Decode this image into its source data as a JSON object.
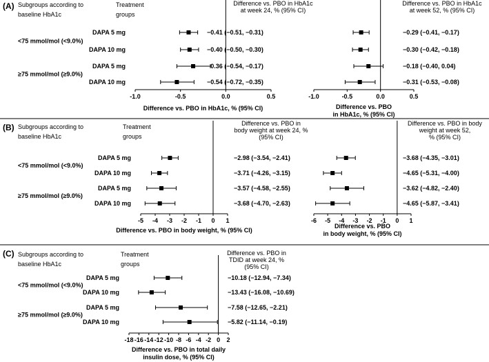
{
  "chart_data": [
    {
      "type": "forest",
      "panel_label": "(A)",
      "header": {
        "subgroup_line1": "Subgroups according to",
        "subgroup_line2": "baseline HbA1c",
        "treatment_line1": "Treatment",
        "treatment_line2": "groups"
      },
      "subgroups": [
        "<75 mmol/mol (<9.0%)",
        "≥75 mmol/mol (≥9.0%)"
      ],
      "rows": [
        {
          "subgroup": 0,
          "treatment": "DAPA 5 mg"
        },
        {
          "subgroup": 0,
          "treatment": "DAPA 10 mg"
        },
        {
          "subgroup": 1,
          "treatment": "DAPA 5 mg"
        },
        {
          "subgroup": 1,
          "treatment": "DAPA 10 mg"
        }
      ],
      "plots": [
        {
          "column_title": [
            "Difference vs. PBO in HbA1c",
            "at week 24, % (95% CI)"
          ],
          "xlabel": [
            "Difference vs. PBO in HbA1c, % (95% CI)"
          ],
          "xlim": [
            -1.0,
            0.5
          ],
          "ticks": [
            "-1.0",
            "-0.5",
            "0.0",
            "0.5"
          ],
          "tick_values": [
            -1.0,
            -0.5,
            0.0,
            0.5
          ],
          "estimates": [
            -0.41,
            -0.4,
            -0.36,
            -0.54
          ],
          "lower": [
            -0.51,
            -0.5,
            -0.54,
            -0.72
          ],
          "upper": [
            -0.31,
            -0.3,
            -0.17,
            -0.35
          ],
          "labels": [
            "−0.41 (−0.51, −0.31)",
            "−0.40 (−0.50, −0.30)",
            "−0.36 (−0.54, −0.17)",
            "−0.54 (−0.72, −0.35)"
          ]
        },
        {
          "column_title": [
            "Difference vs. PBO in HbA1c",
            "at week 52, % (95% CI)"
          ],
          "xlabel": [
            "Difference vs. PBO",
            "in HbA1c, % (95% CI)"
          ],
          "xlim": [
            -1.0,
            0.5
          ],
          "ticks": [
            "-1.0",
            "-0.5",
            "0.0",
            "0.5"
          ],
          "tick_values": [
            -1.0,
            -0.5,
            0.0,
            0.5
          ],
          "estimates": [
            -0.29,
            -0.3,
            -0.18,
            -0.31
          ],
          "lower": [
            -0.41,
            -0.42,
            -0.4,
            -0.53
          ],
          "upper": [
            -0.17,
            -0.18,
            0.04,
            -0.08
          ],
          "labels": [
            "−0.29 (−0.41, −0.17)",
            "−0.30 (−0.42, −0.18)",
            "−0.18 (−0.40, 0.04)",
            "−0.31 (−0.53, −0.08)"
          ]
        }
      ]
    },
    {
      "type": "forest",
      "panel_label": "(B)",
      "header": {
        "subgroup_line1": "Subgroups according to",
        "subgroup_line2": "baseline HbA1c",
        "treatment_line1": "Treatment",
        "treatment_line2": "groups"
      },
      "subgroups": [
        "<75 mmol/mol (<9.0%)",
        "≥75 mmol/mol (≥9.0%)"
      ],
      "rows": [
        {
          "subgroup": 0,
          "treatment": "DAPA 5 mg"
        },
        {
          "subgroup": 0,
          "treatment": "DAPA 10 mg"
        },
        {
          "subgroup": 1,
          "treatment": "DAPA 5 mg"
        },
        {
          "subgroup": 1,
          "treatment": "DAPA 10 mg"
        }
      ],
      "plots": [
        {
          "column_title": [
            "Difference vs. PBO in",
            "body weight  at week 24, %",
            "(95% CI)"
          ],
          "xlabel": [
            "Difference vs. PBO in body weight, % (95% CI)"
          ],
          "xlim": [
            -5,
            1
          ],
          "ticks": [
            "-5",
            "-4",
            "-3",
            "-2",
            "-1",
            "0",
            "1"
          ],
          "tick_values": [
            -5,
            -4,
            -3,
            -2,
            -1,
            0,
            1
          ],
          "estimates": [
            -2.98,
            -3.71,
            -3.57,
            -3.68
          ],
          "lower": [
            -3.54,
            -4.26,
            -4.58,
            -4.7
          ],
          "upper": [
            -2.41,
            -3.15,
            -2.55,
            -2.63
          ],
          "labels": [
            "−2.98 (−3.54, −2.41)",
            "−3.71 (−4.26, −3.15)",
            "−3.57 (−4.58, −2.55)",
            "−3.68 (−4.70, −2.63)"
          ]
        },
        {
          "column_title": [
            "Difference vs. PBO in body",
            "weight  at week 52,",
            "% (95% CI)"
          ],
          "xlabel": [
            "Difference vs. PBO",
            "in body weight, % (95% CI)"
          ],
          "xlim": [
            -6,
            1
          ],
          "ticks": [
            "-6",
            "-5",
            "-4",
            "-3",
            "-2",
            "-1",
            "0",
            "1"
          ],
          "tick_values": [
            -6,
            -5,
            -4,
            -3,
            -2,
            -1,
            0,
            1
          ],
          "estimates": [
            -3.68,
            -4.65,
            -3.62,
            -4.65
          ],
          "lower": [
            -4.35,
            -5.31,
            -4.82,
            -5.87
          ],
          "upper": [
            -3.01,
            -4.0,
            -2.4,
            -3.41
          ],
          "labels": [
            "−3.68 (−4.35, −3.01)",
            "−4.65 (−5.31, −4.00)",
            "−3.62 (−4.82, −2.40)",
            "−4.65 (−5.87, −3.41)"
          ]
        }
      ]
    },
    {
      "type": "forest",
      "panel_label": "(C)",
      "header": {
        "subgroup_line1": "Subgroups according to",
        "subgroup_line2": "baseline HbA1c",
        "treatment_line1": "Treatment",
        "treatment_line2": "groups"
      },
      "subgroups": [
        "<75 mmol/mol (<9.0%)",
        "≥75 mmol/mol (≥9.0%)"
      ],
      "rows": [
        {
          "subgroup": 0,
          "treatment": "DAPA 5 mg"
        },
        {
          "subgroup": 0,
          "treatment": "DAPA 10 mg"
        },
        {
          "subgroup": 1,
          "treatment": "DAPA 5 mg"
        },
        {
          "subgroup": 1,
          "treatment": "DAPA 10 mg"
        }
      ],
      "plots": [
        {
          "column_title": [
            "Difference vs. PBO in",
            "TDID  at week 24, %",
            "(95% CI)"
          ],
          "xlabel": [
            "Difference vs. PBO in total daily",
            "insulin dose, % (95% CI)"
          ],
          "xlim": [
            -18,
            2
          ],
          "ticks": [
            "-18",
            "-16",
            "-14",
            "-12",
            "-10",
            "-8",
            "-6",
            "-4",
            "-2",
            "0",
            "2"
          ],
          "tick_values": [
            -18,
            -16,
            -14,
            -12,
            -10,
            -8,
            -6,
            -4,
            -2,
            0,
            2
          ],
          "estimates": [
            -10.18,
            -13.43,
            -7.58,
            -5.82
          ],
          "lower": [
            -12.94,
            -16.08,
            -12.65,
            -11.14
          ],
          "upper": [
            -7.34,
            -10.69,
            -2.21,
            -0.19
          ],
          "labels": [
            "−10.18 (−12.94, −7.34)",
            "−13.43 (−16.08, −10.69)",
            "−7.58 (−12.65, −2.21)",
            "−5.82 (−11.14, −0.19)"
          ]
        }
      ]
    }
  ]
}
